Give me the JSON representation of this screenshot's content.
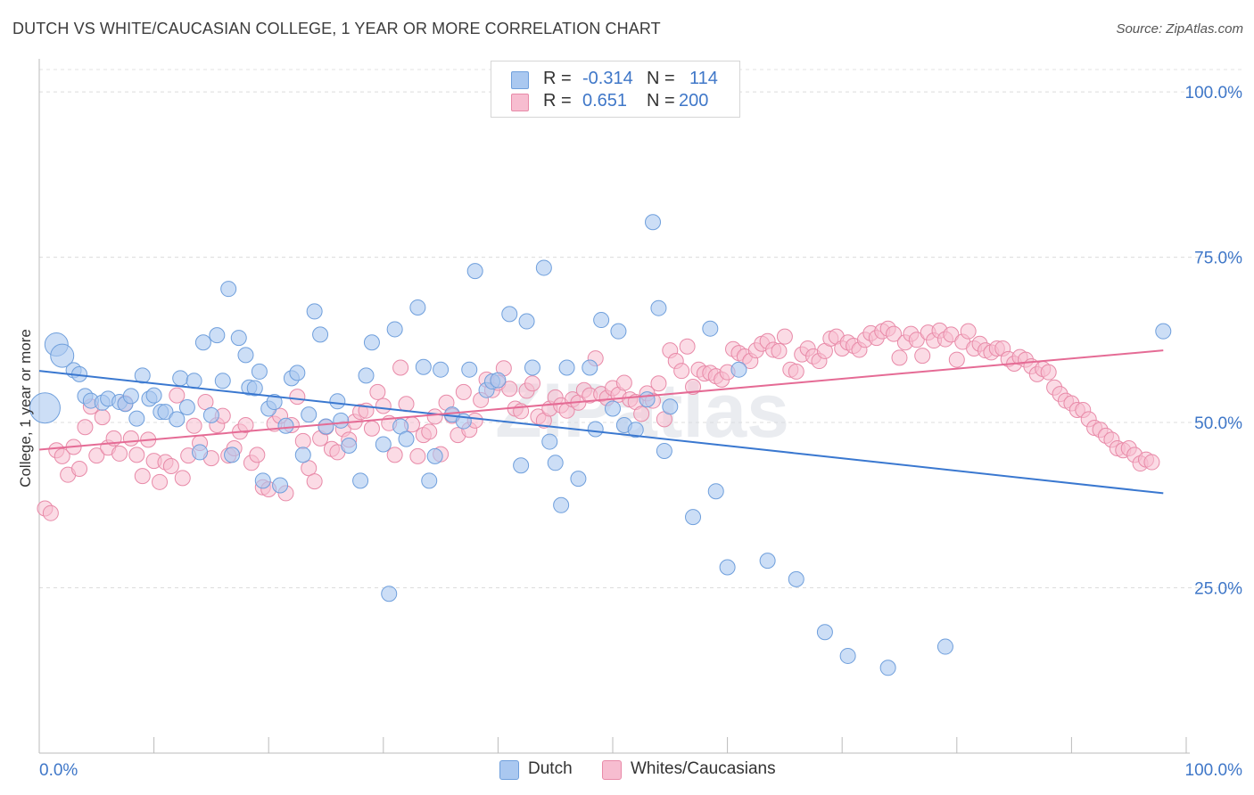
{
  "title": "DUTCH VS WHITE/CAUCASIAN COLLEGE, 1 YEAR OR MORE CORRELATION CHART",
  "source": "Source: ZipAtlas.com",
  "watermark": "ZIPatlas",
  "legend": {
    "rows": [
      {
        "r_label": "R =",
        "r_value": "-0.314",
        "n_label": "N =",
        "n_value": "114",
        "color": "#aac8f0",
        "border": "#6f9fdc"
      },
      {
        "r_label": "R =",
        "r_value": "0.651",
        "n_label": "N =",
        "n_value": "200",
        "color": "#f7bdd0",
        "border": "#e88aa8"
      }
    ]
  },
  "bottom_legend": [
    {
      "label": "Dutch",
      "color": "#aac8f0",
      "border": "#6f9fdc"
    },
    {
      "label": "Whites/Caucasians",
      "color": "#f7bdd0",
      "border": "#e88aa8"
    }
  ],
  "chart_data": {
    "type": "scatter",
    "title": "DUTCH VS WHITE/CAUCASIAN COLLEGE, 1 YEAR OR MORE CORRELATION CHART",
    "xlabel": "",
    "ylabel": "College, 1 year or more",
    "xlim": [
      0,
      100
    ],
    "ylim": [
      0,
      105
    ],
    "x_tick_labels": [
      "0.0%",
      "100.0%"
    ],
    "y_tick_labels": [
      "25.0%",
      "50.0%",
      "75.0%",
      "100.0%"
    ],
    "y_ticks": [
      25,
      50,
      75,
      100
    ],
    "grid": true,
    "colors": {
      "dutch_fill": "#aac8f0",
      "dutch_stroke": "#6f9fdc",
      "dutch_line": "#3a78d0",
      "white_fill": "#f7bdd0",
      "white_stroke": "#e88aa8",
      "white_line": "#e56b95",
      "axis_text": "#3f77c8"
    },
    "series": [
      {
        "name": "Dutch",
        "trend": [
          [
            0,
            57.8
          ],
          [
            98,
            39.3
          ]
        ],
        "points": [
          [
            0.5,
            52.2
          ],
          [
            1.5,
            61.8
          ],
          [
            2,
            60.1
          ],
          [
            3,
            57.9
          ],
          [
            3.5,
            57.3
          ],
          [
            4,
            54
          ],
          [
            4.5,
            53.3
          ],
          [
            5.5,
            53
          ],
          [
            6,
            53.6
          ],
          [
            7,
            53.1
          ],
          [
            7.5,
            52.8
          ],
          [
            8,
            54
          ],
          [
            8.5,
            50.6
          ],
          [
            9,
            57.1
          ],
          [
            9.6,
            53.6
          ],
          [
            10,
            54.1
          ],
          [
            10.6,
            51.6
          ],
          [
            11,
            51.6
          ],
          [
            12,
            50.5
          ],
          [
            12.3,
            56.7
          ],
          [
            12.9,
            52.3
          ],
          [
            13.5,
            56.3
          ],
          [
            14,
            45.5
          ],
          [
            14.3,
            62.1
          ],
          [
            15,
            51.1
          ],
          [
            15.5,
            63.2
          ],
          [
            16,
            56.3
          ],
          [
            16.5,
            70.2
          ],
          [
            16.8,
            45.1
          ],
          [
            17.4,
            62.8
          ],
          [
            18,
            60.2
          ],
          [
            18.3,
            55.3
          ],
          [
            18.8,
            55.2
          ],
          [
            19.2,
            57.7
          ],
          [
            19.5,
            41.2
          ],
          [
            20,
            52.1
          ],
          [
            20.5,
            53.1
          ],
          [
            21,
            40.5
          ],
          [
            21.5,
            49.5
          ],
          [
            22,
            56.7
          ],
          [
            22.5,
            57.5
          ],
          [
            23,
            45.1
          ],
          [
            23.5,
            51.2
          ],
          [
            24,
            66.8
          ],
          [
            24.5,
            63.3
          ],
          [
            25,
            49.4
          ],
          [
            26,
            53.2
          ],
          [
            26.3,
            50.3
          ],
          [
            27,
            46.5
          ],
          [
            28,
            41.2
          ],
          [
            28.5,
            57.1
          ],
          [
            29,
            62.1
          ],
          [
            30,
            46.7
          ],
          [
            30.5,
            24.1
          ],
          [
            31,
            64.1
          ],
          [
            31.5,
            49.4
          ],
          [
            32,
            47.5
          ],
          [
            33,
            67.4
          ],
          [
            33.5,
            58.4
          ],
          [
            34,
            41.2
          ],
          [
            34.5,
            44.9
          ],
          [
            35,
            58
          ],
          [
            36,
            51.2
          ],
          [
            37,
            50.2
          ],
          [
            37.5,
            58
          ],
          [
            38,
            72.9
          ],
          [
            39,
            54.9
          ],
          [
            39.5,
            56.2
          ],
          [
            40,
            56.4
          ],
          [
            41,
            66.4
          ],
          [
            42,
            43.5
          ],
          [
            42.5,
            65.3
          ],
          [
            43,
            58.3
          ],
          [
            44,
            73.4
          ],
          [
            44.5,
            47.1
          ],
          [
            45,
            43.9
          ],
          [
            45.5,
            37.5
          ],
          [
            46,
            58.3
          ],
          [
            47,
            41.5
          ],
          [
            48,
            58.3
          ],
          [
            48.5,
            49
          ],
          [
            49,
            65.5
          ],
          [
            50,
            52.1
          ],
          [
            50.5,
            63.8
          ],
          [
            51,
            49.6
          ],
          [
            52,
            48.9
          ],
          [
            53,
            53.5
          ],
          [
            53.5,
            80.3
          ],
          [
            54,
            67.3
          ],
          [
            54.5,
            45.7
          ],
          [
            55,
            52.4
          ],
          [
            57,
            35.7
          ],
          [
            58.5,
            64.2
          ],
          [
            59,
            39.6
          ],
          [
            60,
            28.1
          ],
          [
            61,
            58
          ],
          [
            63.5,
            29.1
          ],
          [
            66,
            26.3
          ],
          [
            68.5,
            18.3
          ],
          [
            70.5,
            14.7
          ],
          [
            74,
            12.9
          ],
          [
            79,
            16.1
          ],
          [
            98,
            63.8
          ]
        ]
      },
      {
        "name": "Whites/Caucasians",
        "trend": [
          [
            0,
            45.9
          ],
          [
            98,
            60.9
          ]
        ],
        "points": [
          [
            0.5,
            37
          ],
          [
            1,
            36.3
          ],
          [
            1.5,
            45.8
          ],
          [
            2,
            44.9
          ],
          [
            2.5,
            42.1
          ],
          [
            3,
            46.3
          ],
          [
            3.5,
            43
          ],
          [
            4,
            49.3
          ],
          [
            4.5,
            52.4
          ],
          [
            5,
            45
          ],
          [
            5.5,
            50.8
          ],
          [
            6,
            46.2
          ],
          [
            6.5,
            47.6
          ],
          [
            7,
            45.3
          ],
          [
            7.5,
            52.9
          ],
          [
            8,
            47.6
          ],
          [
            8.5,
            45.1
          ],
          [
            9,
            41.9
          ],
          [
            9.5,
            47.4
          ],
          [
            10,
            44.2
          ],
          [
            10.5,
            41
          ],
          [
            11,
            44
          ],
          [
            11.5,
            43.4
          ],
          [
            12,
            54.1
          ],
          [
            12.5,
            41.6
          ],
          [
            13,
            45
          ],
          [
            13.5,
            49.5
          ],
          [
            14,
            46.9
          ],
          [
            14.5,
            53.1
          ],
          [
            15,
            44.6
          ],
          [
            15.5,
            49.6
          ],
          [
            16,
            51
          ],
          [
            16.5,
            45
          ],
          [
            17,
            46.1
          ],
          [
            17.5,
            48.6
          ],
          [
            18,
            49.6
          ],
          [
            18.5,
            43.9
          ],
          [
            19,
            45.1
          ],
          [
            19.5,
            40.2
          ],
          [
            20,
            39.9
          ],
          [
            20.5,
            49.8
          ],
          [
            21,
            51
          ],
          [
            21.5,
            39.3
          ],
          [
            22,
            49.6
          ],
          [
            22.5,
            53.9
          ],
          [
            23,
            47.2
          ],
          [
            23.5,
            43.1
          ],
          [
            24,
            41.1
          ],
          [
            24.5,
            47.6
          ],
          [
            25,
            49.3
          ],
          [
            25.5,
            46
          ],
          [
            26,
            45.5
          ],
          [
            26.5,
            49
          ],
          [
            27,
            47.4
          ],
          [
            27.5,
            50.1
          ],
          [
            28,
            51.6
          ],
          [
            28.5,
            51.8
          ],
          [
            29,
            49.1
          ],
          [
            29.5,
            54.6
          ],
          [
            30,
            52.5
          ],
          [
            30.5,
            49.9
          ],
          [
            31,
            45.1
          ],
          [
            31.5,
            58.3
          ],
          [
            32,
            52.8
          ],
          [
            32.5,
            49.7
          ],
          [
            33,
            44.9
          ],
          [
            33.5,
            48.1
          ],
          [
            34,
            48.6
          ],
          [
            34.5,
            50.9
          ],
          [
            35,
            45.2
          ],
          [
            35.5,
            53
          ],
          [
            36,
            51
          ],
          [
            36.5,
            48.1
          ],
          [
            37,
            54.6
          ],
          [
            37.5,
            48.9
          ],
          [
            38,
            50.3
          ],
          [
            38.5,
            53.4
          ],
          [
            39,
            56.5
          ],
          [
            39.5,
            54.9
          ],
          [
            40,
            56
          ],
          [
            40.5,
            58.2
          ],
          [
            41,
            55.1
          ],
          [
            41.5,
            52.1
          ],
          [
            42,
            51.7
          ],
          [
            42.5,
            54.8
          ],
          [
            43,
            55.9
          ],
          [
            43.5,
            50.9
          ],
          [
            44,
            50.3
          ],
          [
            44.5,
            52.1
          ],
          [
            45,
            53.8
          ],
          [
            45.5,
            52.6
          ],
          [
            46,
            51.8
          ],
          [
            46.5,
            53.5
          ],
          [
            47,
            53
          ],
          [
            47.5,
            54.9
          ],
          [
            48,
            54.1
          ],
          [
            48.5,
            59.7
          ],
          [
            49,
            54.3
          ],
          [
            49.5,
            53.7
          ],
          [
            50,
            55.2
          ],
          [
            50.5,
            54.2
          ],
          [
            51,
            56
          ],
          [
            51.5,
            53.5
          ],
          [
            52,
            53.1
          ],
          [
            52.5,
            51.3
          ],
          [
            53,
            54.4
          ],
          [
            53.5,
            53.3
          ],
          [
            54,
            55.9
          ],
          [
            54.5,
            50.5
          ],
          [
            55,
            60.9
          ],
          [
            55.5,
            59.3
          ],
          [
            56,
            57.8
          ],
          [
            56.5,
            61.5
          ],
          [
            57,
            55.4
          ],
          [
            57.5,
            58
          ],
          [
            58,
            57.4
          ],
          [
            58.5,
            57.5
          ],
          [
            59,
            57
          ],
          [
            59.5,
            56.5
          ],
          [
            60,
            57.6
          ],
          [
            60.5,
            61.1
          ],
          [
            61,
            60.5
          ],
          [
            61.5,
            60
          ],
          [
            62,
            59.3
          ],
          [
            62.5,
            60.9
          ],
          [
            63,
            61.9
          ],
          [
            63.5,
            62.3
          ],
          [
            64,
            61
          ],
          [
            64.5,
            60.8
          ],
          [
            65,
            63
          ],
          [
            65.5,
            58
          ],
          [
            66,
            57.7
          ],
          [
            66.5,
            60.3
          ],
          [
            67,
            61.2
          ],
          [
            67.5,
            60
          ],
          [
            68,
            59.3
          ],
          [
            68.5,
            60.8
          ],
          [
            69,
            62.7
          ],
          [
            69.5,
            63
          ],
          [
            70,
            61.2
          ],
          [
            70.5,
            62.1
          ],
          [
            71,
            61.6
          ],
          [
            71.5,
            61
          ],
          [
            72,
            62.5
          ],
          [
            72.5,
            63.5
          ],
          [
            73,
            62.8
          ],
          [
            73.5,
            63.8
          ],
          [
            74,
            64.2
          ],
          [
            74.5,
            63.4
          ],
          [
            75,
            59.8
          ],
          [
            75.5,
            62.1
          ],
          [
            76,
            63.4
          ],
          [
            76.5,
            62.5
          ],
          [
            77,
            60.1
          ],
          [
            77.5,
            63.6
          ],
          [
            78,
            62.4
          ],
          [
            78.5,
            63.9
          ],
          [
            79,
            62.6
          ],
          [
            79.5,
            63.3
          ],
          [
            80,
            59.5
          ],
          [
            80.5,
            62.2
          ],
          [
            81,
            63.8
          ],
          [
            81.5,
            61.2
          ],
          [
            82,
            61.9
          ],
          [
            82.5,
            60.9
          ],
          [
            83,
            60.6
          ],
          [
            83.5,
            61.2
          ],
          [
            84,
            61.2
          ],
          [
            84.5,
            59.6
          ],
          [
            85,
            58.9
          ],
          [
            85.5,
            59.9
          ],
          [
            86,
            59.5
          ],
          [
            86.5,
            58.5
          ],
          [
            87,
            57.3
          ],
          [
            87.5,
            58.1
          ],
          [
            88,
            57.6
          ],
          [
            88.5,
            55.3
          ],
          [
            89,
            54.3
          ],
          [
            89.5,
            53.3
          ],
          [
            90,
            52.9
          ],
          [
            90.5,
            51.9
          ],
          [
            91,
            51.9
          ],
          [
            91.5,
            50.5
          ],
          [
            92,
            49.2
          ],
          [
            92.5,
            48.9
          ],
          [
            93,
            48
          ],
          [
            93.5,
            47.4
          ],
          [
            94,
            46.1
          ],
          [
            94.5,
            45.8
          ],
          [
            95,
            46.1
          ],
          [
            95.5,
            45.1
          ],
          [
            96,
            43.8
          ],
          [
            96.5,
            44.4
          ],
          [
            97,
            44
          ]
        ]
      }
    ]
  }
}
